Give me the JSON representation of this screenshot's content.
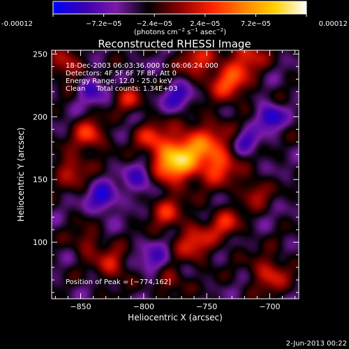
{
  "colorbar": {
    "tick_labels": [
      "-0.00012",
      "−7.2e−05",
      "−2.4e−05",
      "2.4e−05",
      "7.2e−05",
      "0.00012"
    ],
    "min": -0.00012,
    "max": 0.00012,
    "unit_parts": [
      "(photons cm",
      "−2",
      " s",
      "−1",
      " asec",
      "−2",
      ")"
    ],
    "colors": [
      "#0000ff",
      "#3a00b0",
      "#7a1aa8",
      "#000000",
      "#8a0000",
      "#ff2000",
      "#ff8000",
      "#ffd000",
      "#ffffff"
    ]
  },
  "chart_data": {
    "type": "heatmap",
    "title": "Reconstructed RHESSI Image",
    "xlabel": "Heliocentric X (arcsec)",
    "ylabel": "Heliocentric Y (arcsec)",
    "xlim": [
      -873,
      -677
    ],
    "ylim": [
      55,
      253
    ],
    "x_ticks": [
      -850,
      -800,
      -750,
      -700
    ],
    "y_ticks": [
      100,
      150,
      200,
      250
    ],
    "x_tick_labels": [
      "−850",
      "−800",
      "−750",
      "−700"
    ],
    "y_tick_labels": [
      "100",
      "150",
      "200",
      "250"
    ],
    "annotations": [
      "18-Dec-2003 06:03:36.000 to 06:06:24.000",
      "Detectors: 4F 5F 6F 7F 8F, Att 0",
      "Energy Range: 12.0 - 25.0 keV",
      "Clean     Total counts: 1.34E+03"
    ],
    "peak_label": "Position of Peak = [−774,162]",
    "peak": {
      "x": -774,
      "y": 162
    },
    "sources": [
      {
        "x": -776,
        "y": 165,
        "sigma": 13,
        "amp": 1.0
      },
      {
        "x": -752,
        "y": 178,
        "sigma": 14,
        "amp": 0.55
      },
      {
        "x": -740,
        "y": 160,
        "sigma": 10,
        "amp": 0.5
      },
      {
        "x": -732,
        "y": 228,
        "sigma": 11,
        "amp": 0.62
      },
      {
        "x": -718,
        "y": 250,
        "sigma": 10,
        "amp": 0.5
      },
      {
        "x": -758,
        "y": 245,
        "sigma": 10,
        "amp": 0.45
      },
      {
        "x": -843,
        "y": 185,
        "sigma": 9,
        "amp": 0.55
      },
      {
        "x": -858,
        "y": 158,
        "sigma": 9,
        "amp": 0.45
      },
      {
        "x": -812,
        "y": 215,
        "sigma": 8,
        "amp": 0.4
      },
      {
        "x": -795,
        "y": 185,
        "sigma": 8,
        "amp": 0.4
      },
      {
        "x": -783,
        "y": 125,
        "sigma": 9,
        "amp": 0.45
      },
      {
        "x": -760,
        "y": 100,
        "sigma": 11,
        "amp": 0.5
      },
      {
        "x": -735,
        "y": 115,
        "sigma": 9,
        "amp": 0.45
      },
      {
        "x": -712,
        "y": 140,
        "sigma": 8,
        "amp": 0.4
      },
      {
        "x": -700,
        "y": 75,
        "sigma": 10,
        "amp": 0.5
      },
      {
        "x": -825,
        "y": 82,
        "sigma": 9,
        "amp": 0.45
      },
      {
        "x": -845,
        "y": 100,
        "sigma": 8,
        "amp": 0.35
      },
      {
        "x": -860,
        "y": 240,
        "sigma": 9,
        "amp": 0.45
      },
      {
        "x": -780,
        "y": 70,
        "sigma": 8,
        "amp": 0.4
      },
      {
        "x": -700,
        "y": 200,
        "sigma": 7,
        "amp": -0.6
      },
      {
        "x": -832,
        "y": 135,
        "sigma": 8,
        "amp": -0.55
      },
      {
        "x": -802,
        "y": 150,
        "sigma": 9,
        "amp": -0.45
      },
      {
        "x": -842,
        "y": 222,
        "sigma": 8,
        "amp": -0.4
      },
      {
        "x": -772,
        "y": 215,
        "sigma": 8,
        "amp": -0.45
      },
      {
        "x": -790,
        "y": 85,
        "sigma": 9,
        "amp": -0.4
      },
      {
        "x": -718,
        "y": 180,
        "sigma": 7,
        "amp": -0.4
      }
    ]
  },
  "footer": {
    "date": "2-Jun-2013 00:22"
  }
}
